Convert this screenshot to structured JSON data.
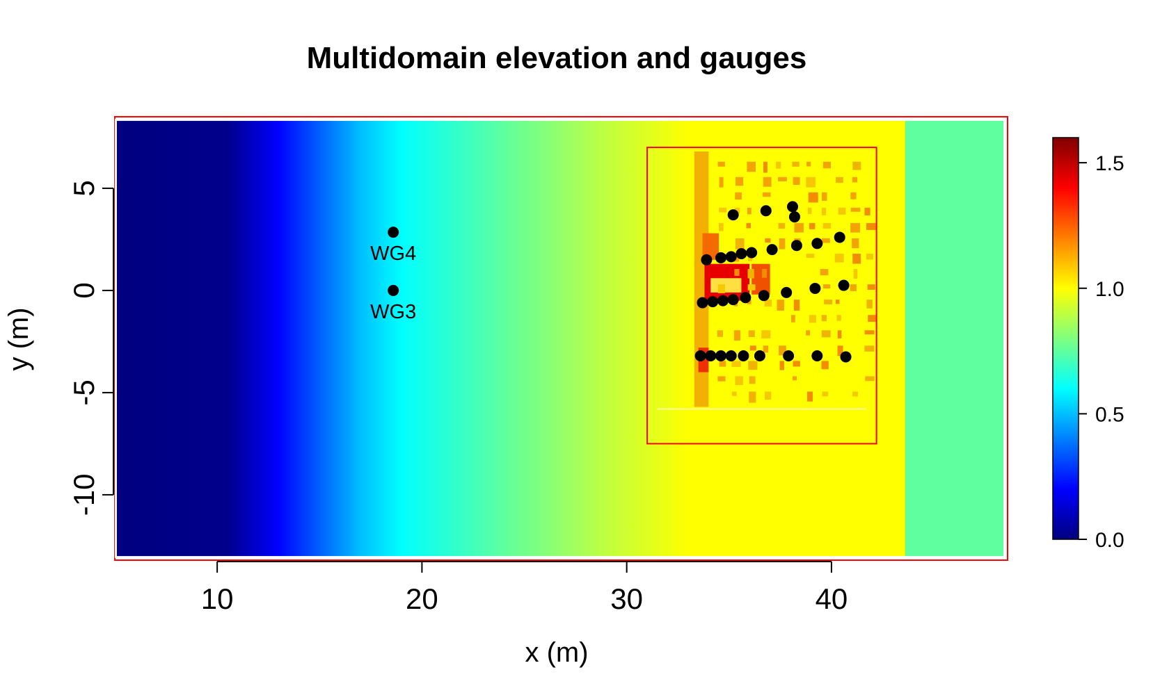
{
  "chart_data": {
    "type": "heatmap",
    "title": "Multidomain elevation and gauges",
    "xlabel": "x (m)",
    "ylabel": "y (m)",
    "xlim": [
      5,
      48.6
    ],
    "ylim": [
      -13.2,
      8.5
    ],
    "x_ticks": [
      10,
      20,
      30,
      40
    ],
    "y_ticks": [
      5,
      0,
      -5,
      -10
    ],
    "elevation_profile": {
      "x": [
        5,
        10.5,
        13,
        17,
        19,
        25,
        29,
        33,
        43.6,
        43.6,
        48.6
      ],
      "elevation": [
        0.0,
        0.02,
        0.2,
        0.5,
        0.6,
        0.78,
        0.9,
        1.0,
        1.0,
        0.75,
        0.75
      ]
    },
    "colorbar": {
      "range": [
        0.0,
        1.6
      ],
      "ticks": [
        "0.0",
        "0.5",
        "1.0",
        "1.5"
      ],
      "colormap": [
        "#00007f",
        "#0000ff",
        "#007fff",
        "#00ffff",
        "#7fff7f",
        "#ffff00",
        "#ff7f00",
        "#ff0000",
        "#7f0000"
      ]
    },
    "nested_domain": {
      "x": [
        31,
        42.2
      ],
      "y": [
        -7.5,
        7.0
      ],
      "color": "#ff0000"
    },
    "labeled_gauges": [
      {
        "label": "WG4",
        "x": 18.6,
        "y": 2.85
      },
      {
        "label": "WG3",
        "x": 18.6,
        "y": 0.0
      }
    ],
    "gauges": [
      {
        "x": 35.2,
        "y": 3.7
      },
      {
        "x": 36.8,
        "y": 3.9
      },
      {
        "x": 38.1,
        "y": 4.1
      },
      {
        "x": 38.2,
        "y": 3.6
      },
      {
        "x": 33.9,
        "y": 1.5
      },
      {
        "x": 34.6,
        "y": 1.6
      },
      {
        "x": 35.1,
        "y": 1.65
      },
      {
        "x": 35.6,
        "y": 1.8
      },
      {
        "x": 36.1,
        "y": 1.85
      },
      {
        "x": 37.1,
        "y": 2.0
      },
      {
        "x": 38.3,
        "y": 2.2
      },
      {
        "x": 39.3,
        "y": 2.3
      },
      {
        "x": 40.4,
        "y": 2.6
      },
      {
        "x": 33.7,
        "y": -0.6
      },
      {
        "x": 34.2,
        "y": -0.55
      },
      {
        "x": 34.7,
        "y": -0.5
      },
      {
        "x": 35.2,
        "y": -0.45
      },
      {
        "x": 35.8,
        "y": -0.35
      },
      {
        "x": 36.7,
        "y": -0.25
      },
      {
        "x": 37.8,
        "y": -0.1
      },
      {
        "x": 39.2,
        "y": 0.1
      },
      {
        "x": 40.6,
        "y": 0.25
      },
      {
        "x": 33.6,
        "y": -3.2
      },
      {
        "x": 34.1,
        "y": -3.2
      },
      {
        "x": 34.6,
        "y": -3.2
      },
      {
        "x": 35.1,
        "y": -3.2
      },
      {
        "x": 35.7,
        "y": -3.2
      },
      {
        "x": 36.5,
        "y": -3.2
      },
      {
        "x": 37.9,
        "y": -3.2
      },
      {
        "x": 39.3,
        "y": -3.2
      },
      {
        "x": 40.7,
        "y": -3.25
      }
    ]
  }
}
